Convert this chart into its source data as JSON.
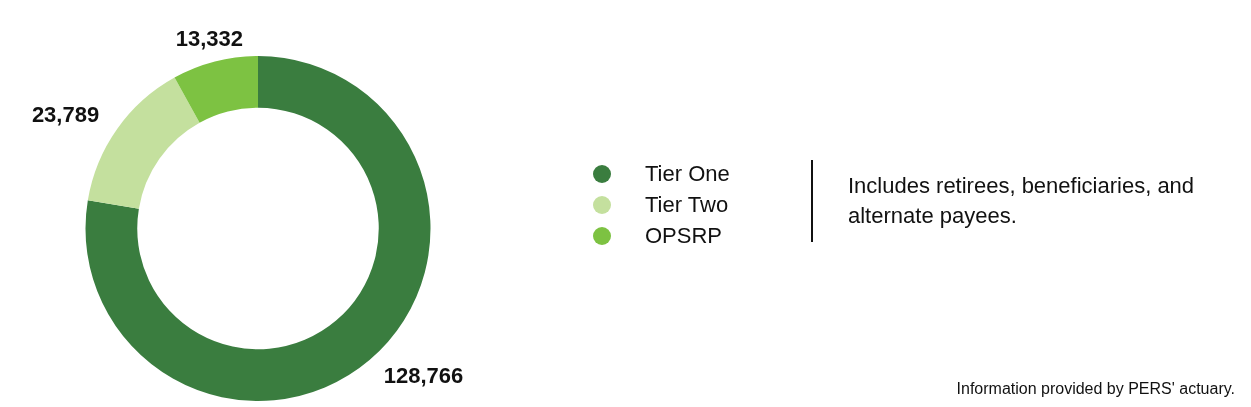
{
  "chart_data": {
    "type": "donut",
    "categories": [
      "Tier One",
      "Tier Two",
      "OPSRP"
    ],
    "values": [
      128766,
      23789,
      13332
    ],
    "value_labels": [
      "128,766",
      "23,789",
      "13,332"
    ],
    "colors": [
      "#3a7d3f",
      "#c4e09e",
      "#7dc242"
    ],
    "legend": "right",
    "annotations": [
      "Includes retirees, beneficiaries, and alternate payees.",
      "Information provided by PERS' actuary."
    ]
  }
}
